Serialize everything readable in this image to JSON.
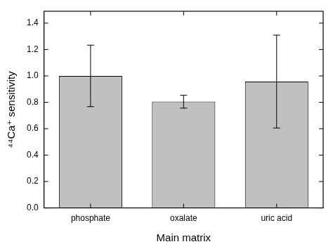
{
  "chart_data": {
    "type": "bar",
    "categories": [
      "phosphate",
      "oxalate",
      "uric acid"
    ],
    "values": [
      1.0,
      0.805,
      0.957
    ],
    "errors": [
      0.233,
      0.049,
      0.352
    ],
    "color": "#c0c0c0",
    "x_label": "Main matrix",
    "y_label": "⁴⁴Ca⁺ sensitivity",
    "ylim": [
      0,
      1.49
    ],
    "yticks": [
      {
        "value": 0,
        "label": "0.0"
      },
      {
        "value": 0.2,
        "label": "0.2"
      },
      {
        "value": 0.4,
        "label": "0.4"
      },
      {
        "value": 0.6,
        "label": "0.6"
      },
      {
        "value": 0.8,
        "label": "0.8"
      },
      {
        "value": 1.0,
        "label": "1.0"
      },
      {
        "value": 1.2,
        "label": "1.2"
      },
      {
        "value": 1.4,
        "label": "1.4"
      }
    ],
    "grid": false
  }
}
